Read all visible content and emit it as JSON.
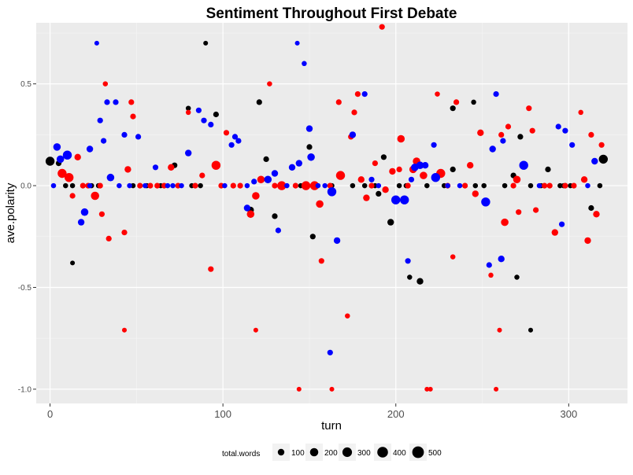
{
  "chart_data": {
    "type": "scatter",
    "title": "Sentiment Throughout First Debate",
    "xlabel": "turn",
    "ylabel": "ave.polarity",
    "xlim": [
      -8,
      334
    ],
    "ylim": [
      -1.07,
      0.8
    ],
    "x_ticks": [
      0,
      100,
      200,
      300
    ],
    "x_tick_labels": [
      "0",
      "100",
      "200",
      "300"
    ],
    "y_ticks": [
      0.5,
      0.0,
      -0.5,
      -1.0
    ],
    "y_tick_labels": [
      "0.5",
      "0.0",
      "-0.5",
      "-1.0"
    ],
    "grid": true,
    "legend_position": "bottom",
    "legend": {
      "title": "total.words",
      "sizes": [
        100,
        200,
        300,
        400,
        500
      ],
      "labels": [
        "100",
        "200",
        "300",
        "400",
        "500"
      ]
    },
    "colors": {
      "panel": "#ebebeb",
      "grid_major": "#ffffff",
      "grid_minor": "#f5f5f5",
      "black": "#000000",
      "red": "#ff0000",
      "blue": "#0000ff"
    },
    "series": [
      {
        "color": "black",
        "points": [
          [
            0,
            0.12,
            250
          ],
          [
            5,
            0.11,
            60
          ],
          [
            9,
            0.0,
            40
          ],
          [
            13,
            0.0,
            40
          ],
          [
            13,
            -0.38,
            30
          ],
          [
            24,
            0.0,
            40
          ],
          [
            28,
            0.0,
            40
          ],
          [
            48,
            0.0,
            40
          ],
          [
            56,
            0.0,
            40
          ],
          [
            64,
            0.0,
            40
          ],
          [
            72,
            0.1,
            60
          ],
          [
            80,
            0.38,
            40
          ],
          [
            82,
            0.0,
            40
          ],
          [
            87,
            0.0,
            40
          ],
          [
            90,
            0.7,
            30
          ],
          [
            96,
            0.35,
            60
          ],
          [
            110,
            0.0,
            40
          ],
          [
            116,
            -0.12,
            100
          ],
          [
            121,
            0.41,
            60
          ],
          [
            125,
            0.13,
            60
          ],
          [
            130,
            -0.15,
            60
          ],
          [
            135,
            0.0,
            40
          ],
          [
            145,
            0.0,
            40
          ],
          [
            150,
            0.19,
            60
          ],
          [
            152,
            -0.25,
            60
          ],
          [
            163,
            0.0,
            40
          ],
          [
            175,
            0.0,
            40
          ],
          [
            182,
            0.0,
            40
          ],
          [
            188,
            0.0,
            40
          ],
          [
            190,
            -0.04,
            60
          ],
          [
            193,
            0.14,
            60
          ],
          [
            197,
            -0.18,
            100
          ],
          [
            202,
            0.0,
            40
          ],
          [
            206,
            0.0,
            40
          ],
          [
            208,
            -0.45,
            40
          ],
          [
            214,
            -0.47,
            100
          ],
          [
            218,
            0.0,
            40
          ],
          [
            228,
            0.0,
            40
          ],
          [
            233,
            0.38,
            60
          ],
          [
            233,
            0.08,
            60
          ],
          [
            245,
            0.41,
            40
          ],
          [
            246,
            0.0,
            40
          ],
          [
            251,
            0.0,
            40
          ],
          [
            263,
            0.0,
            40
          ],
          [
            268,
            0.05,
            60
          ],
          [
            270,
            -0.45,
            40
          ],
          [
            272,
            0.24,
            60
          ],
          [
            278,
            0.0,
            40
          ],
          [
            278,
            -0.71,
            30
          ],
          [
            284,
            0.0,
            40
          ],
          [
            288,
            0.08,
            60
          ],
          [
            295,
            0.0,
            40
          ],
          [
            297,
            0.0,
            40
          ],
          [
            301,
            0.0,
            40
          ],
          [
            313,
            -0.11,
            60
          ],
          [
            318,
            0.0,
            40
          ],
          [
            320,
            0.13,
            250
          ]
        ]
      },
      {
        "color": "red",
        "points": [
          [
            7,
            0.06,
            250
          ],
          [
            11,
            0.04,
            250
          ],
          [
            13,
            -0.05,
            60
          ],
          [
            16,
            0.14,
            100
          ],
          [
            19,
            0.0,
            60
          ],
          [
            22,
            0.0,
            60
          ],
          [
            26,
            -0.05,
            200
          ],
          [
            29,
            0.0,
            60
          ],
          [
            30,
            -0.14,
            60
          ],
          [
            32,
            0.5,
            40
          ],
          [
            34,
            -0.26,
            60
          ],
          [
            43,
            -0.23,
            60
          ],
          [
            43,
            -0.71,
            30
          ],
          [
            45,
            0.08,
            100
          ],
          [
            47,
            0.41,
            60
          ],
          [
            48,
            0.34,
            60
          ],
          [
            52,
            0.0,
            60
          ],
          [
            58,
            0.0,
            60
          ],
          [
            62,
            0.0,
            60
          ],
          [
            66,
            0.0,
            60
          ],
          [
            70,
            0.09,
            100
          ],
          [
            74,
            0.0,
            60
          ],
          [
            80,
            0.36,
            40
          ],
          [
            84,
            0.0,
            60
          ],
          [
            88,
            0.05,
            60
          ],
          [
            93,
            -0.41,
            60
          ],
          [
            96,
            0.1,
            250
          ],
          [
            99,
            0.0,
            60
          ],
          [
            102,
            0.26,
            60
          ],
          [
            106,
            0.0,
            60
          ],
          [
            110,
            0.0,
            60
          ],
          [
            116,
            -0.14,
            150
          ],
          [
            119,
            -0.05,
            150
          ],
          [
            119,
            -0.71,
            30
          ],
          [
            122,
            0.03,
            150
          ],
          [
            127,
            0.5,
            40
          ],
          [
            130,
            0.0,
            60
          ],
          [
            134,
            0.0,
            250
          ],
          [
            142,
            0.0,
            60
          ],
          [
            144,
            -1.0,
            30
          ],
          [
            148,
            0.0,
            250
          ],
          [
            153,
            0.0,
            250
          ],
          [
            156,
            -0.09,
            150
          ],
          [
            157,
            -0.37,
            60
          ],
          [
            162,
            0.0,
            60
          ],
          [
            163,
            -1.0,
            30
          ],
          [
            167,
            0.41,
            60
          ],
          [
            168,
            0.05,
            250
          ],
          [
            172,
            -0.64,
            40
          ],
          [
            174,
            0.24,
            60
          ],
          [
            176,
            0.36,
            60
          ],
          [
            178,
            0.45,
            60
          ],
          [
            180,
            0.03,
            100
          ],
          [
            183,
            -0.06,
            100
          ],
          [
            186,
            0.0,
            60
          ],
          [
            188,
            0.11,
            60
          ],
          [
            192,
            0.78,
            60
          ],
          [
            194,
            -0.02,
            100
          ],
          [
            198,
            0.07,
            100
          ],
          [
            202,
            0.08,
            60
          ],
          [
            203,
            0.23,
            150
          ],
          [
            207,
            0.0,
            60
          ],
          [
            210,
            0.08,
            150
          ],
          [
            212,
            0.12,
            150
          ],
          [
            216,
            0.05,
            150
          ],
          [
            218,
            -1.0,
            30
          ],
          [
            220,
            -1.0,
            30
          ],
          [
            224,
            0.45,
            40
          ],
          [
            226,
            0.06,
            250
          ],
          [
            230,
            0.0,
            60
          ],
          [
            233,
            -0.35,
            40
          ],
          [
            235,
            0.41,
            60
          ],
          [
            240,
            0.0,
            60
          ],
          [
            243,
            0.1,
            100
          ],
          [
            246,
            -0.04,
            100
          ],
          [
            249,
            0.26,
            100
          ],
          [
            255,
            -0.44,
            40
          ],
          [
            258,
            -1.0,
            30
          ],
          [
            260,
            -0.71,
            30
          ],
          [
            261,
            0.25,
            60
          ],
          [
            263,
            -0.18,
            150
          ],
          [
            265,
            0.29,
            60
          ],
          [
            268,
            0.0,
            60
          ],
          [
            270,
            0.03,
            150
          ],
          [
            271,
            -0.13,
            60
          ],
          [
            277,
            0.38,
            60
          ],
          [
            279,
            0.27,
            60
          ],
          [
            281,
            -0.12,
            60
          ],
          [
            286,
            0.0,
            60
          ],
          [
            289,
            0.0,
            60
          ],
          [
            292,
            -0.23,
            100
          ],
          [
            298,
            0.0,
            60
          ],
          [
            303,
            0.0,
            60
          ],
          [
            307,
            0.36,
            40
          ],
          [
            309,
            0.03,
            100
          ],
          [
            311,
            -0.27,
            100
          ],
          [
            313,
            0.25,
            60
          ],
          [
            316,
            -0.14,
            100
          ],
          [
            319,
            0.2,
            60
          ]
        ]
      },
      {
        "color": "blue",
        "points": [
          [
            2,
            0.0,
            40
          ],
          [
            4,
            0.19,
            150
          ],
          [
            6,
            0.13,
            150
          ],
          [
            10,
            0.15,
            250
          ],
          [
            18,
            -0.18,
            100
          ],
          [
            20,
            -0.13,
            150
          ],
          [
            23,
            0.0,
            40
          ],
          [
            23,
            0.18,
            100
          ],
          [
            27,
            0.7,
            30
          ],
          [
            29,
            0.32,
            60
          ],
          [
            31,
            0.22,
            60
          ],
          [
            33,
            0.41,
            60
          ],
          [
            35,
            0.04,
            150
          ],
          [
            38,
            0.41,
            60
          ],
          [
            40,
            0.0,
            40
          ],
          [
            43,
            0.25,
            60
          ],
          [
            46,
            0.0,
            40
          ],
          [
            51,
            0.24,
            60
          ],
          [
            55,
            0.0,
            40
          ],
          [
            61,
            0.09,
            60
          ],
          [
            68,
            0.0,
            40
          ],
          [
            71,
            0.0,
            40
          ],
          [
            76,
            0.0,
            40
          ],
          [
            80,
            0.16,
            100
          ],
          [
            86,
            0.37,
            60
          ],
          [
            89,
            0.32,
            60
          ],
          [
            93,
            0.3,
            60
          ],
          [
            101,
            0.0,
            40
          ],
          [
            105,
            0.2,
            60
          ],
          [
            107,
            0.24,
            60
          ],
          [
            109,
            0.22,
            60
          ],
          [
            114,
            0.0,
            40
          ],
          [
            114,
            -0.11,
            100
          ],
          [
            118,
            0.02,
            60
          ],
          [
            126,
            0.03,
            150
          ],
          [
            130,
            0.06,
            100
          ],
          [
            132,
            -0.22,
            60
          ],
          [
            137,
            0.0,
            40
          ],
          [
            140,
            0.09,
            100
          ],
          [
            143,
            0.7,
            30
          ],
          [
            144,
            0.11,
            100
          ],
          [
            147,
            0.6,
            40
          ],
          [
            150,
            0.28,
            100
          ],
          [
            151,
            0.14,
            150
          ],
          [
            155,
            0.0,
            40
          ],
          [
            159,
            0.0,
            40
          ],
          [
            162,
            -0.82,
            60
          ],
          [
            163,
            -0.03,
            250
          ],
          [
            166,
            -0.27,
            100
          ],
          [
            175,
            0.25,
            100
          ],
          [
            182,
            0.45,
            60
          ],
          [
            186,
            0.03,
            60
          ],
          [
            190,
            0.0,
            40
          ],
          [
            200,
            -0.07,
            250
          ],
          [
            205,
            -0.07,
            250
          ],
          [
            207,
            -0.37,
            60
          ],
          [
            209,
            0.03,
            60
          ],
          [
            211,
            0.09,
            150
          ],
          [
            214,
            0.1,
            150
          ],
          [
            217,
            0.1,
            100
          ],
          [
            222,
            0.2,
            60
          ],
          [
            223,
            0.04,
            250
          ],
          [
            230,
            0.0,
            40
          ],
          [
            237,
            0.0,
            40
          ],
          [
            252,
            -0.08,
            250
          ],
          [
            254,
            -0.39,
            60
          ],
          [
            256,
            0.18,
            100
          ],
          [
            258,
            0.45,
            60
          ],
          [
            261,
            -0.36,
            100
          ],
          [
            262,
            0.22,
            60
          ],
          [
            274,
            0.1,
            250
          ],
          [
            283,
            0.0,
            40
          ],
          [
            294,
            0.29,
            60
          ],
          [
            296,
            -0.19,
            60
          ],
          [
            298,
            0.27,
            60
          ],
          [
            302,
            0.2,
            60
          ],
          [
            311,
            0.0,
            40
          ],
          [
            315,
            0.12,
            100
          ]
        ]
      }
    ]
  }
}
